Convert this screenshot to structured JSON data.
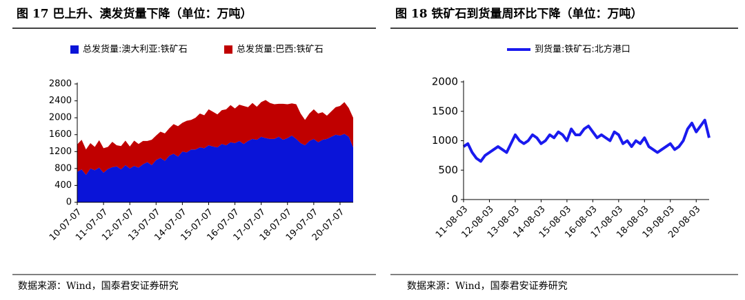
{
  "chart_data": [
    {
      "type": "area",
      "stacked": true,
      "title": "图 17 巴上升、澳发货量下降（单位：万吨）",
      "note": "数据来源：Wind，国泰君安证券研究",
      "categories": [
        "10-07-07",
        null,
        null,
        null,
        null,
        null,
        "11-07-07",
        null,
        null,
        null,
        null,
        null,
        "12-07-07",
        null,
        null,
        null,
        null,
        null,
        "13-07-07",
        null,
        null,
        null,
        null,
        null,
        "14-07-07",
        null,
        null,
        null,
        null,
        null,
        "15-07-07",
        null,
        null,
        null,
        null,
        null,
        "16-07-07",
        null,
        null,
        null,
        null,
        null,
        "17-07-07",
        null,
        null,
        null,
        null,
        null,
        "18-07-07",
        null,
        null,
        null,
        null,
        null,
        "19-07-07",
        null,
        null,
        null,
        null,
        null,
        "20-07-07",
        null,
        null,
        null
      ],
      "series": [
        {
          "name": "总发货量:澳大利亚:铁矿石",
          "color": "#0a14d8",
          "values": [
            720,
            780,
            650,
            800,
            760,
            820,
            700,
            790,
            830,
            850,
            780,
            880,
            800,
            860,
            820,
            900,
            950,
            880,
            1000,
            1050,
            980,
            1100,
            1150,
            1080,
            1200,
            1180,
            1250,
            1250,
            1300,
            1280,
            1350,
            1320,
            1300,
            1380,
            1350,
            1420,
            1400,
            1450,
            1380,
            1450,
            1500,
            1480,
            1550,
            1520,
            1500,
            1500,
            1550,
            1480,
            1520,
            1580,
            1500,
            1400,
            1350,
            1450,
            1500,
            1420,
            1480,
            1500,
            1550,
            1600,
            1580,
            1620,
            1550,
            1300
          ]
        },
        {
          "name": "总发货量:巴西:铁矿石",
          "color": "#c00000",
          "values": [
            650,
            700,
            600,
            600,
            550,
            650,
            580,
            520,
            600,
            500,
            550,
            580,
            520,
            600,
            560,
            550,
            500,
            600,
            580,
            620,
            650,
            650,
            700,
            720,
            680,
            750,
            700,
            750,
            800,
            780,
            850,
            820,
            780,
            800,
            850,
            880,
            820,
            860,
            900,
            800,
            850,
            780,
            820,
            900,
            850,
            820,
            780,
            850,
            800,
            760,
            820,
            700,
            600,
            650,
            700,
            680,
            650,
            550,
            600,
            650,
            700,
            750,
            680,
            700
          ]
        }
      ],
      "ylim": [
        0,
        2800
      ],
      "yticks": [
        0,
        400,
        800,
        1200,
        1600,
        2000,
        2400,
        2800
      ],
      "legend": "top"
    },
    {
      "type": "line",
      "title": "图 18 铁矿石到货量周环比下降（单位：万吨）",
      "note": "数据来源：Wind，国泰君安证券研究",
      "categories": [
        "11-08-03",
        null,
        null,
        null,
        null,
        null,
        "12-08-03",
        null,
        null,
        null,
        null,
        null,
        "13-08-03",
        null,
        null,
        null,
        null,
        null,
        "14-08-03",
        null,
        null,
        null,
        null,
        null,
        "15-08-03",
        null,
        null,
        null,
        null,
        null,
        "16-08-03",
        null,
        null,
        null,
        null,
        null,
        "17-08-03",
        null,
        null,
        null,
        null,
        null,
        "18-08-03",
        null,
        null,
        null,
        null,
        null,
        "19-08-03",
        null,
        null,
        null,
        null,
        null,
        "20-08-03",
        null,
        null,
        null
      ],
      "series": [
        {
          "name": "到货量:铁矿石:北方港口",
          "color": "#1a1aee",
          "values": [
            900,
            950,
            800,
            700,
            650,
            750,
            800,
            850,
            900,
            850,
            800,
            950,
            1100,
            1000,
            950,
            1000,
            1100,
            1050,
            950,
            1000,
            1100,
            1050,
            1150,
            1100,
            1000,
            1200,
            1100,
            1100,
            1200,
            1250,
            1150,
            1050,
            1100,
            1050,
            1000,
            1150,
            1100,
            950,
            1000,
            900,
            1000,
            950,
            1050,
            900,
            850,
            800,
            850,
            900,
            950,
            850,
            900,
            1000,
            1200,
            1300,
            1150,
            1250,
            1350,
            1050
          ]
        }
      ],
      "ylim": [
        0,
        2000
      ],
      "yticks": [
        0,
        500,
        1000,
        1500,
        2000
      ],
      "legend": "top"
    }
  ]
}
